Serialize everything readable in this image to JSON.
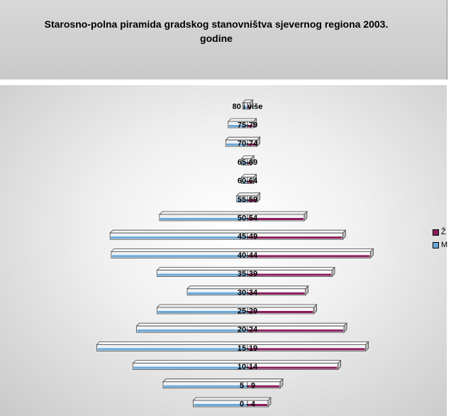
{
  "chart_data": {
    "type": "bar",
    "title": "Starosno-polna piramida gradskog stanovništva sjevernog regiona 2003. godine",
    "categories": [
      "0 - 4",
      "5 - 9",
      "10-14",
      "15-19",
      "20-24",
      "25-29",
      "30-34",
      "35-39",
      "40-44",
      "45-49",
      "50-54",
      "55-59",
      "60-64",
      "65-69",
      "70-74",
      "75-79",
      "80 i više"
    ],
    "series": [
      {
        "name": "Ž",
        "values": [
          17,
          27,
          75,
          98,
          80,
          55,
          48,
          70,
          102,
          79,
          47,
          8,
          5,
          3,
          8,
          5,
          2
        ],
        "color": "#8b1d5a"
      },
      {
        "name": "M",
        "values": [
          45,
          70,
          95,
          125,
          92,
          75,
          50,
          75,
          113,
          114,
          73,
          9,
          5,
          5,
          18,
          16,
          4
        ],
        "color": "#6aa8d8"
      }
    ],
    "pyramid": true,
    "legend_position": "right"
  },
  "legend": {
    "female": "Ž",
    "male": "M"
  },
  "colors": {
    "title_band": "#cccccc",
    "female": "#8b1d5a",
    "male": "#6aa8d8"
  }
}
